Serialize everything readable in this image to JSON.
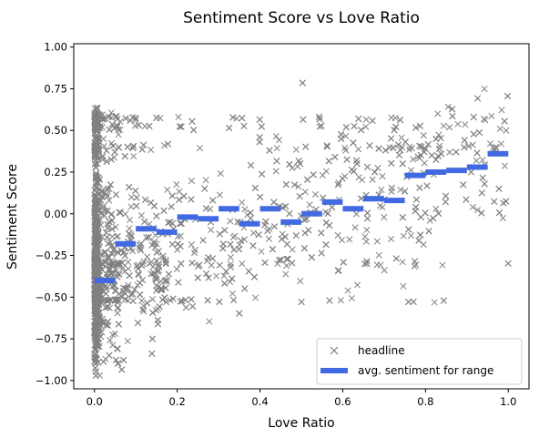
{
  "chart_data": {
    "type": "scatter",
    "title": "Sentiment Score vs Love Ratio",
    "xlabel": "Love Ratio",
    "ylabel": "Sentiment Score",
    "xlim": [
      -0.05,
      1.05
    ],
    "ylim": [
      -1.05,
      1.02
    ],
    "xticks": [
      "0.0",
      "0.2",
      "0.4",
      "0.6",
      "0.8",
      "1.0"
    ],
    "yticks": [
      "1.00",
      "0.75",
      "0.50",
      "0.25",
      "0.00",
      "−0.25",
      "−0.50",
      "−0.75",
      "−1.00"
    ],
    "grid": false,
    "legend_position": "lower-right",
    "series": [
      {
        "name": "headline",
        "kind": "scatter",
        "marker": "x",
        "color": "#808080",
        "note_values": "dense cloud of points spanning Love Ratio 0–1 and Sentiment Score −1 to 1; heavily concentrated near Love Ratio 0"
      },
      {
        "name": "avg. sentiment for range",
        "kind": "step-segments",
        "color": "#4169e1",
        "segments": [
          {
            "x0": 0.0,
            "x1": 0.05,
            "y": -0.4
          },
          {
            "x0": 0.05,
            "x1": 0.1,
            "y": -0.18
          },
          {
            "x0": 0.1,
            "x1": 0.15,
            "y": -0.09
          },
          {
            "x0": 0.15,
            "x1": 0.2,
            "y": -0.11
          },
          {
            "x0": 0.2,
            "x1": 0.25,
            "y": -0.02
          },
          {
            "x0": 0.25,
            "x1": 0.3,
            "y": -0.03
          },
          {
            "x0": 0.3,
            "x1": 0.35,
            "y": 0.03
          },
          {
            "x0": 0.35,
            "x1": 0.4,
            "y": -0.06
          },
          {
            "x0": 0.4,
            "x1": 0.45,
            "y": 0.03
          },
          {
            "x0": 0.45,
            "x1": 0.5,
            "y": -0.05
          },
          {
            "x0": 0.5,
            "x1": 0.55,
            "y": 0.0
          },
          {
            "x0": 0.55,
            "x1": 0.6,
            "y": 0.07
          },
          {
            "x0": 0.6,
            "x1": 0.65,
            "y": 0.03
          },
          {
            "x0": 0.65,
            "x1": 0.7,
            "y": 0.09
          },
          {
            "x0": 0.7,
            "x1": 0.75,
            "y": 0.08
          },
          {
            "x0": 0.75,
            "x1": 0.8,
            "y": 0.23
          },
          {
            "x0": 0.8,
            "x1": 0.85,
            "y": 0.25
          },
          {
            "x0": 0.85,
            "x1": 0.9,
            "y": 0.26
          },
          {
            "x0": 0.9,
            "x1": 0.95,
            "y": 0.28
          },
          {
            "x0": 0.95,
            "x1": 1.0,
            "y": 0.36
          }
        ]
      }
    ]
  }
}
